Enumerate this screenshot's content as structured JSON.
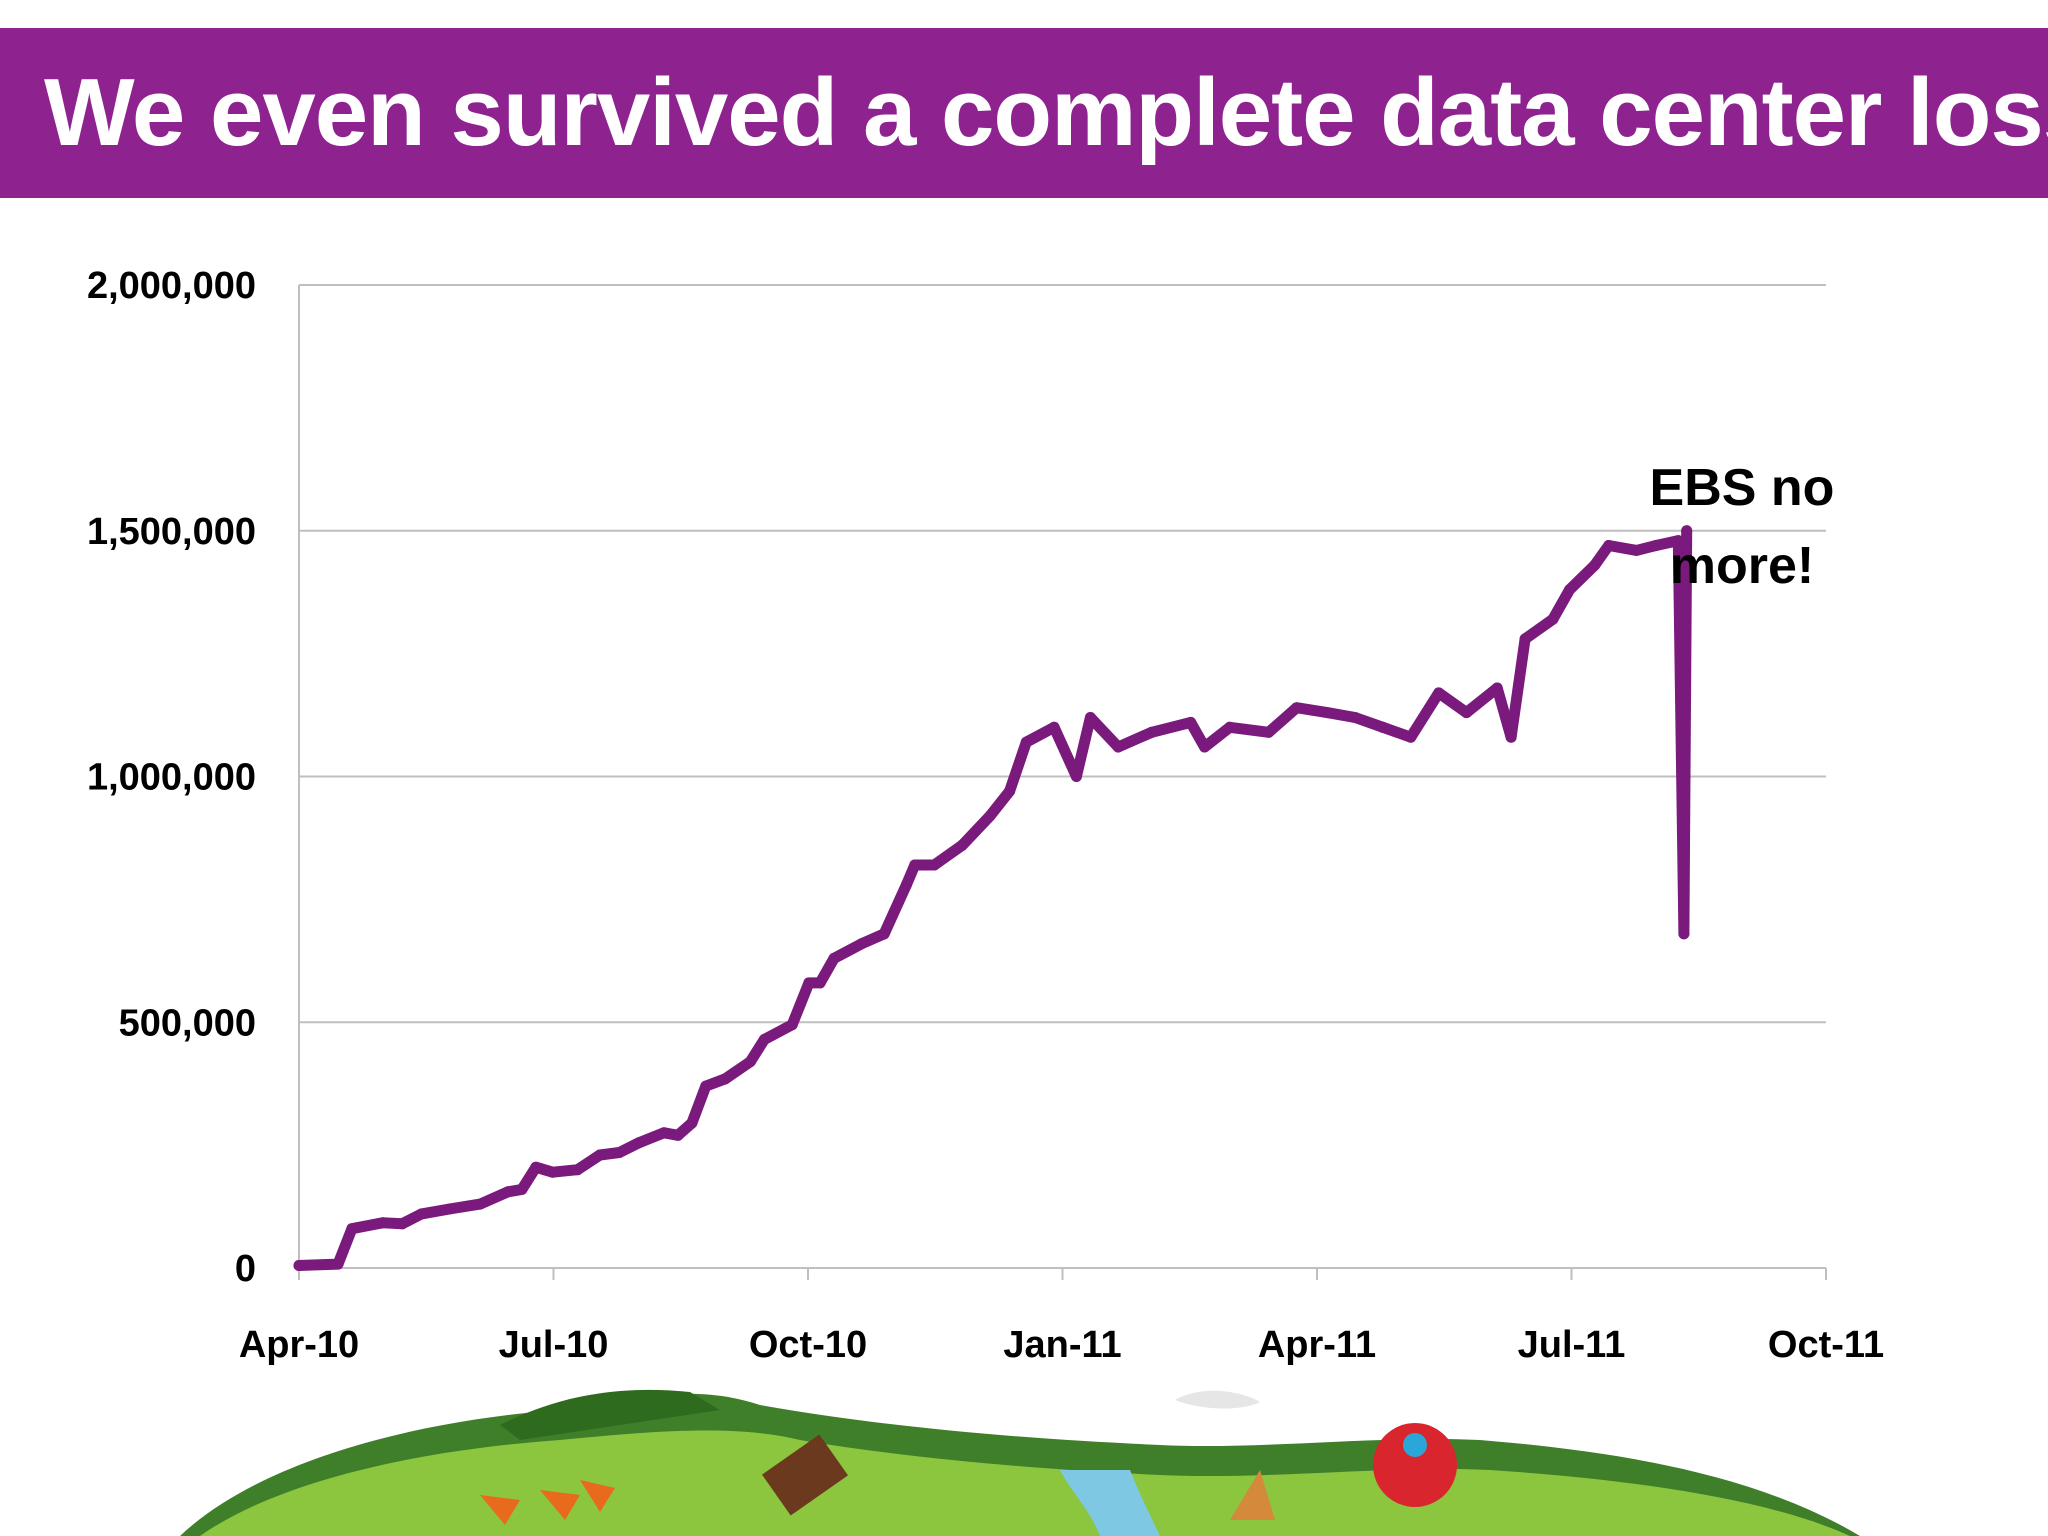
{
  "slide": {
    "title": "We even survived a complete data center loss"
  },
  "colors": {
    "header_background": "#8e2390",
    "series_line": "#7a1a7d",
    "gridline": "#bfbfbf"
  },
  "illustration": {
    "name": "farm-landscape-illustration"
  },
  "chart_data": {
    "type": "line",
    "title": "",
    "xlabel": "",
    "ylabel": "",
    "x_tick_labels": [
      "Apr-10",
      "Jul-10",
      "Oct-10",
      "Jan-11",
      "Apr-11",
      "Jul-11",
      "Oct-11"
    ],
    "y_tick_labels": [
      "0",
      "500,000",
      "1,000,000",
      "1,500,000",
      "2,000,000"
    ],
    "xlim": [
      "2010-04-01",
      "2011-10-01"
    ],
    "ylim": [
      0,
      2000000
    ],
    "grid": true,
    "legend": "none",
    "annotations": [
      {
        "text_lines": [
          "EBS no",
          "more!"
        ],
        "near": "2011-08-10"
      }
    ],
    "series": [
      {
        "points": [
          [
            "2010-04-01",
            5000
          ],
          [
            "2010-04-15",
            8000
          ],
          [
            "2010-04-20",
            80000
          ],
          [
            "2010-05-01",
            92000
          ],
          [
            "2010-05-08",
            90000
          ],
          [
            "2010-05-15",
            110000
          ],
          [
            "2010-05-25",
            120000
          ],
          [
            "2010-06-05",
            130000
          ],
          [
            "2010-06-15",
            155000
          ],
          [
            "2010-06-20",
            160000
          ],
          [
            "2010-06-25",
            205000
          ],
          [
            "2010-07-01",
            195000
          ],
          [
            "2010-07-10",
            200000
          ],
          [
            "2010-07-18",
            230000
          ],
          [
            "2010-07-25",
            235000
          ],
          [
            "2010-08-01",
            255000
          ],
          [
            "2010-08-10",
            275000
          ],
          [
            "2010-08-15",
            270000
          ],
          [
            "2010-08-20",
            295000
          ],
          [
            "2010-08-25",
            370000
          ],
          [
            "2010-09-01",
            385000
          ],
          [
            "2010-09-10",
            420000
          ],
          [
            "2010-09-15",
            465000
          ],
          [
            "2010-09-25",
            495000
          ],
          [
            "2010-10-01",
            580000
          ],
          [
            "2010-10-05",
            580000
          ],
          [
            "2010-10-10",
            630000
          ],
          [
            "2010-10-20",
            660000
          ],
          [
            "2010-10-28",
            680000
          ],
          [
            "2010-11-05",
            780000
          ],
          [
            "2010-11-08",
            820000
          ],
          [
            "2010-11-15",
            820000
          ],
          [
            "2010-11-25",
            860000
          ],
          [
            "2010-12-05",
            920000
          ],
          [
            "2010-12-12",
            970000
          ],
          [
            "2010-12-18",
            1070000
          ],
          [
            "2010-12-28",
            1100000
          ],
          [
            "2011-01-05",
            1000000
          ],
          [
            "2011-01-10",
            1120000
          ],
          [
            "2011-01-20",
            1060000
          ],
          [
            "2011-02-01",
            1090000
          ],
          [
            "2011-02-15",
            1110000
          ],
          [
            "2011-02-20",
            1060000
          ],
          [
            "2011-03-01",
            1100000
          ],
          [
            "2011-03-15",
            1090000
          ],
          [
            "2011-03-25",
            1140000
          ],
          [
            "2011-04-05",
            1130000
          ],
          [
            "2011-04-15",
            1120000
          ],
          [
            "2011-04-25",
            1100000
          ],
          [
            "2011-05-05",
            1080000
          ],
          [
            "2011-05-15",
            1170000
          ],
          [
            "2011-05-25",
            1130000
          ],
          [
            "2011-06-05",
            1180000
          ],
          [
            "2011-06-10",
            1080000
          ],
          [
            "2011-06-15",
            1280000
          ],
          [
            "2011-06-25",
            1320000
          ],
          [
            "2011-07-01",
            1380000
          ],
          [
            "2011-07-10",
            1430000
          ],
          [
            "2011-07-15",
            1470000
          ],
          [
            "2011-07-25",
            1460000
          ],
          [
            "2011-08-01",
            1470000
          ],
          [
            "2011-08-09",
            1480000
          ],
          [
            "2011-08-11",
            680000
          ],
          [
            "2011-08-12",
            1500000
          ]
        ]
      }
    ]
  }
}
